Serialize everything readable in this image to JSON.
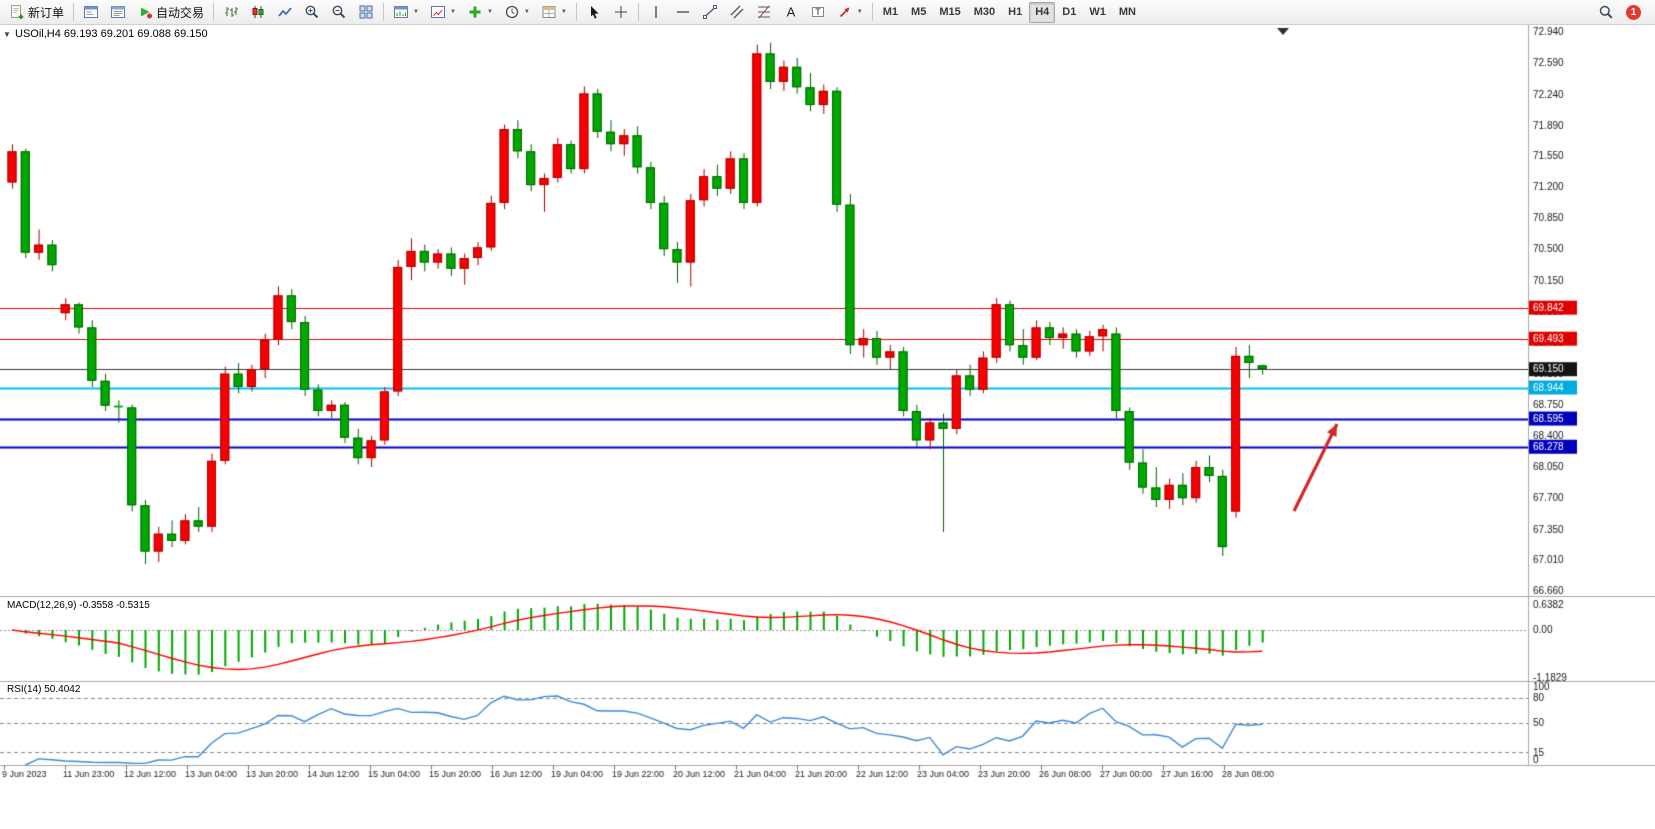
{
  "toolbar": {
    "new_order": "新订单",
    "autotrading": "自动交易",
    "tool_a": "A",
    "tool_t": "T",
    "timeframes": [
      "M1",
      "M5",
      "M15",
      "M30",
      "H1",
      "H4",
      "D1",
      "W1",
      "MN"
    ],
    "active_timeframe": "H4",
    "notification_count": "1"
  },
  "chart_header": {
    "title": "USOil,H4 69.193 69.201 69.088 69.150"
  },
  "indicators": {
    "macd_label": "MACD(12,26,9) -0.3558 -0.5315",
    "rsi_label": "RSI(14) 50.4042"
  },
  "chart_data": {
    "type": "candlestick",
    "symbol": "USOil",
    "timeframe": "H4",
    "ohlc_current": {
      "open": "69.193",
      "high": "69.201",
      "low": "69.088",
      "close": "69.150"
    },
    "y_range": [
      66.6,
      73.02
    ],
    "price_axis_ticks": [
      "72.940",
      "72.590",
      "72.240",
      "71.890",
      "71.550",
      "71.200",
      "70.850",
      "70.500",
      "70.150",
      "69.800",
      "69.450",
      "69.100",
      "68.750",
      "68.400",
      "68.050",
      "67.700",
      "67.350",
      "67.010",
      "66.660"
    ],
    "horizontal_lines": [
      {
        "price": 69.842,
        "label": "69.842",
        "line_color": "#e80000",
        "box_color": "#e00000",
        "width": 1
      },
      {
        "price": 69.493,
        "label": "69.493",
        "line_color": "#e80000",
        "box_color": "#e00000",
        "width": 1
      },
      {
        "price": 69.15,
        "label": "69.150",
        "line_color": "#3a3a3a",
        "box_color": "#141414",
        "width": 1
      },
      {
        "price": 68.944,
        "label": "68.944",
        "line_color": "#00bdf2",
        "box_color": "#00ace0",
        "width": 2
      },
      {
        "price": 68.595,
        "label": "68.595",
        "line_color": "#0000cc",
        "box_color": "#0000bb",
        "width": 2
      },
      {
        "price": 68.278,
        "label": "68.278",
        "line_color": "#0000cc",
        "box_color": "#0000bb",
        "width": 2
      }
    ],
    "colors": {
      "bull": "#f80000",
      "bull_wick": "#a80000",
      "bear": "#00a800",
      "bear_wick": "#006400"
    },
    "candles": [
      [
        71.25,
        71.68,
        71.18,
        71.6
      ],
      [
        71.6,
        71.63,
        70.4,
        70.46
      ],
      [
        70.46,
        70.72,
        70.38,
        70.55
      ],
      [
        70.55,
        70.6,
        70.25,
        70.32
      ],
      [
        69.78,
        69.95,
        69.7,
        69.88
      ],
      [
        69.88,
        69.9,
        69.55,
        69.62
      ],
      [
        69.62,
        69.7,
        68.95,
        69.02
      ],
      [
        69.02,
        69.1,
        68.68,
        68.74
      ],
      [
        68.74,
        68.8,
        68.55,
        68.72
      ],
      [
        68.72,
        68.75,
        67.55,
        67.62
      ],
      [
        67.62,
        67.68,
        66.96,
        67.1
      ],
      [
        67.1,
        67.38,
        66.98,
        67.3
      ],
      [
        67.3,
        67.45,
        67.15,
        67.22
      ],
      [
        67.22,
        67.52,
        67.18,
        67.45
      ],
      [
        67.45,
        67.6,
        67.32,
        67.38
      ],
      [
        67.38,
        68.2,
        67.32,
        68.12
      ],
      [
        68.12,
        69.18,
        68.08,
        69.1
      ],
      [
        69.1,
        69.22,
        68.88,
        68.95
      ],
      [
        68.95,
        69.2,
        68.9,
        69.15
      ],
      [
        69.15,
        69.55,
        69.05,
        69.48
      ],
      [
        69.48,
        70.08,
        69.42,
        69.98
      ],
      [
        69.98,
        70.05,
        69.6,
        69.68
      ],
      [
        69.68,
        69.75,
        68.85,
        68.92
      ],
      [
        68.92,
        68.98,
        68.62,
        68.68
      ],
      [
        68.68,
        68.8,
        68.6,
        68.75
      ],
      [
        68.75,
        68.78,
        68.32,
        68.38
      ],
      [
        68.38,
        68.48,
        68.08,
        68.15
      ],
      [
        68.15,
        68.4,
        68.05,
        68.35
      ],
      [
        68.35,
        68.95,
        68.3,
        68.9
      ],
      [
        68.9,
        70.38,
        68.85,
        70.3
      ],
      [
        70.3,
        70.62,
        70.15,
        70.48
      ],
      [
        70.48,
        70.55,
        70.25,
        70.35
      ],
      [
        70.35,
        70.5,
        70.28,
        70.45
      ],
      [
        70.45,
        70.52,
        70.2,
        70.28
      ],
      [
        70.28,
        70.45,
        70.1,
        70.4
      ],
      [
        70.4,
        70.58,
        70.32,
        70.52
      ],
      [
        70.52,
        71.1,
        70.48,
        71.02
      ],
      [
        71.02,
        71.9,
        70.95,
        71.85
      ],
      [
        71.85,
        71.95,
        71.52,
        71.6
      ],
      [
        71.6,
        71.68,
        71.15,
        71.22
      ],
      [
        71.22,
        71.35,
        70.92,
        71.3
      ],
      [
        71.3,
        71.75,
        71.25,
        71.68
      ],
      [
        71.68,
        71.72,
        71.35,
        71.4
      ],
      [
        71.4,
        72.33,
        71.35,
        72.25
      ],
      [
        72.25,
        72.3,
        71.75,
        71.82
      ],
      [
        71.82,
        71.95,
        71.6,
        71.68
      ],
      [
        71.68,
        71.85,
        71.55,
        71.78
      ],
      [
        71.78,
        71.88,
        71.35,
        71.42
      ],
      [
        71.42,
        71.48,
        70.95,
        71.02
      ],
      [
        71.02,
        71.1,
        70.42,
        70.5
      ],
      [
        70.5,
        70.58,
        70.12,
        70.35
      ],
      [
        70.35,
        71.12,
        70.08,
        71.05
      ],
      [
        71.05,
        71.4,
        70.98,
        71.32
      ],
      [
        71.32,
        71.45,
        71.1,
        71.18
      ],
      [
        71.18,
        71.6,
        71.12,
        71.52
      ],
      [
        71.52,
        71.58,
        70.95,
        71.02
      ],
      [
        71.02,
        72.8,
        70.98,
        72.7
      ],
      [
        72.7,
        72.82,
        72.3,
        72.38
      ],
      [
        72.38,
        72.62,
        72.28,
        72.55
      ],
      [
        72.55,
        72.65,
        72.25,
        72.32
      ],
      [
        72.32,
        72.48,
        72.05,
        72.12
      ],
      [
        72.12,
        72.35,
        72.02,
        72.28
      ],
      [
        72.28,
        72.32,
        70.92,
        71.0
      ],
      [
        71.0,
        71.12,
        69.32,
        69.42
      ],
      [
        69.42,
        69.6,
        69.28,
        69.5
      ],
      [
        69.5,
        69.58,
        69.2,
        69.28
      ],
      [
        69.28,
        69.42,
        69.15,
        69.35
      ],
      [
        69.35,
        69.4,
        68.62,
        68.68
      ],
      [
        68.68,
        68.75,
        68.28,
        68.35
      ],
      [
        68.35,
        68.6,
        68.25,
        68.55
      ],
      [
        68.55,
        68.65,
        67.32,
        68.48
      ],
      [
        68.48,
        69.15,
        68.42,
        69.08
      ],
      [
        69.08,
        69.2,
        68.85,
        68.92
      ],
      [
        68.92,
        69.35,
        68.88,
        69.28
      ],
      [
        69.28,
        69.95,
        69.22,
        69.88
      ],
      [
        69.88,
        69.92,
        69.35,
        69.42
      ],
      [
        69.42,
        69.6,
        69.2,
        69.28
      ],
      [
        69.28,
        69.7,
        69.25,
        69.62
      ],
      [
        69.62,
        69.68,
        69.42,
        69.5
      ],
      [
        69.5,
        69.62,
        69.38,
        69.55
      ],
      [
        69.55,
        69.6,
        69.28,
        69.35
      ],
      [
        69.35,
        69.58,
        69.3,
        69.52
      ],
      [
        69.52,
        69.65,
        69.35,
        69.6
      ],
      [
        69.55,
        69.62,
        68.6,
        68.68
      ],
      [
        68.68,
        68.72,
        68.02,
        68.1
      ],
      [
        68.1,
        68.25,
        67.75,
        67.82
      ],
      [
        67.82,
        68.05,
        67.6,
        67.68
      ],
      [
        67.68,
        67.92,
        67.58,
        67.85
      ],
      [
        67.85,
        67.98,
        67.62,
        67.7
      ],
      [
        67.7,
        68.12,
        67.65,
        68.05
      ],
      [
        68.05,
        68.18,
        67.88,
        67.95
      ],
      [
        67.95,
        68.02,
        67.05,
        67.15
      ],
      [
        67.55,
        69.4,
        67.48,
        69.3
      ],
      [
        69.3,
        69.42,
        69.05,
        69.22
      ],
      [
        69.193,
        69.201,
        69.088,
        69.15
      ]
    ],
    "time_axis": [
      {
        "x": 2,
        "label": "9 Jun 2023"
      },
      {
        "x": 63,
        "label": "11 Jun 23:00"
      },
      {
        "x": 124,
        "label": "12 Jun 12:00"
      },
      {
        "x": 185,
        "label": "13 Jun 04:00"
      },
      {
        "x": 246,
        "label": "13 Jun 20:00"
      },
      {
        "x": 307,
        "label": "14 Jun 12:00"
      },
      {
        "x": 368,
        "label": "15 Jun 04:00"
      },
      {
        "x": 429,
        "label": "15 Jun 20:00"
      },
      {
        "x": 490,
        "label": "16 Jun 12:00"
      },
      {
        "x": 551,
        "label": "19 Jun 04:00"
      },
      {
        "x": 612,
        "label": "19 Jun 22:00"
      },
      {
        "x": 673,
        "label": "20 Jun 12:00"
      },
      {
        "x": 734,
        "label": "21 Jun 04:00"
      },
      {
        "x": 795,
        "label": "21 Jun 20:00"
      },
      {
        "x": 856,
        "label": "22 Jun 12:00"
      },
      {
        "x": 917,
        "label": "23 Jun 04:00"
      },
      {
        "x": 978,
        "label": "23 Jun 20:00"
      },
      {
        "x": 1039,
        "label": "26 Jun 08:00"
      },
      {
        "x": 1100,
        "label": "27 Jun 00:00"
      },
      {
        "x": 1161,
        "label": "27 Jun 16:00"
      },
      {
        "x": 1222,
        "label": "28 Jun 08:00"
      }
    ],
    "macd": {
      "params": "12,26,9",
      "value": -0.3558,
      "signal": -0.5315,
      "histogram_color": "#00a800",
      "signal_color": "#ff0000",
      "axis_labels": [
        "0.6382",
        "0.00",
        "-1.1829"
      ]
    },
    "rsi": {
      "period": 14,
      "value": 50.4042,
      "line_color": "#3b8ad8",
      "axis_labels": [
        "100",
        "80",
        "50",
        "15",
        "0"
      ],
      "levels": [
        80,
        50,
        15
      ]
    },
    "arrow_annotation": {
      "from": [
        1294,
        511
      ],
      "to": [
        1337,
        424
      ],
      "color": "#d02828"
    },
    "shift_marker_x": 1283
  }
}
